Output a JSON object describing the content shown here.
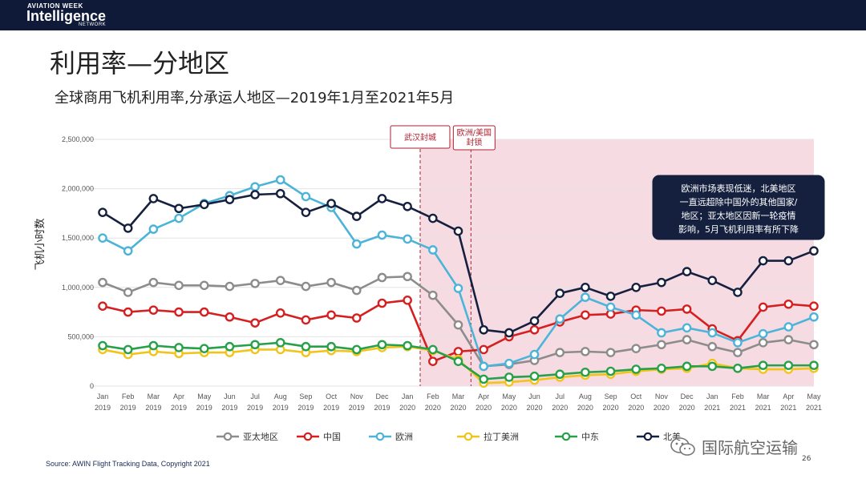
{
  "header": {
    "brand_small": "AVIATION WEEK",
    "brand_main": "Intelligence",
    "brand_network": "NETWORK",
    "accent_color": "#c8102e"
  },
  "slide": {
    "title": "利用率—分地区",
    "subtitle": "全球商用飞机利用率,分承运人地区—2019年1月至2021年5月",
    "source": "Source: AWIN Flight Tracking Data, Copyright 2021",
    "page_number": "26"
  },
  "watermark": {
    "icon": "wechat-icon",
    "text": "国际航空运输"
  },
  "chart_data": {
    "type": "line",
    "title": "",
    "xlabel": "",
    "ylabel": "飞机小时数",
    "ylim": [
      0,
      2500000
    ],
    "yticks": [
      0,
      500000,
      1000000,
      1500000,
      2000000,
      2500000
    ],
    "ytick_labels": [
      "0",
      "500,000",
      "1,000,000",
      "1,500,000",
      "2,000,000",
      "2,500,000"
    ],
    "categories": [
      [
        "Jan",
        "2019"
      ],
      [
        "Feb",
        "2019"
      ],
      [
        "Mar",
        "2019"
      ],
      [
        "Apr",
        "2019"
      ],
      [
        "May",
        "2019"
      ],
      [
        "Jun",
        "2019"
      ],
      [
        "Jul",
        "2019"
      ],
      [
        "Aug",
        "2019"
      ],
      [
        "Sep",
        "2019"
      ],
      [
        "Oct",
        "2019"
      ],
      [
        "Nov",
        "2019"
      ],
      [
        "Dec",
        "2019"
      ],
      [
        "Jan",
        "2020"
      ],
      [
        "Feb",
        "2020"
      ],
      [
        "Mar",
        "2020"
      ],
      [
        "Apr",
        "2020"
      ],
      [
        "May",
        "2020"
      ],
      [
        "Jun",
        "2020"
      ],
      [
        "Jul",
        "2020"
      ],
      [
        "Aug",
        "2020"
      ],
      [
        "Sep",
        "2020"
      ],
      [
        "Oct",
        "2020"
      ],
      [
        "Nov",
        "2020"
      ],
      [
        "Dec",
        "2020"
      ],
      [
        "Jan",
        "2021"
      ],
      [
        "Feb",
        "2021"
      ],
      [
        "Mar",
        "2021"
      ],
      [
        "Apr",
        "2021"
      ],
      [
        "May",
        "2021"
      ]
    ],
    "grid": true,
    "legend_position": "bottom",
    "shaded_region": {
      "from": "Feb 2020",
      "to": "May 2021",
      "color": "#f7dbe3"
    },
    "event_markers": [
      {
        "at": "Jan 2020",
        "label": "武汉封城"
      },
      {
        "at": "Mar 2020",
        "label_lines": [
          "欧洲/美国",
          "封锁"
        ]
      }
    ],
    "annotation": {
      "lines": [
        "欧洲市场表现低迷，北美地区",
        "一直远超除中国外的其他国家/",
        "地区；亚太地区因新一轮疫情",
        "影响，5月飞机利用率有所下降"
      ]
    },
    "series": [
      {
        "name": "亚太地区",
        "color": "#8c8c8c",
        "values": [
          1050000,
          950000,
          1050000,
          1020000,
          1020000,
          1010000,
          1040000,
          1070000,
          1010000,
          1050000,
          970000,
          1100000,
          1110000,
          920000,
          620000,
          200000,
          220000,
          260000,
          340000,
          350000,
          340000,
          380000,
          420000,
          470000,
          400000,
          340000,
          440000,
          470000,
          420000
        ]
      },
      {
        "name": "中国",
        "color": "#d42020",
        "values": [
          810000,
          750000,
          770000,
          750000,
          750000,
          700000,
          640000,
          740000,
          670000,
          720000,
          690000,
          840000,
          870000,
          250000,
          350000,
          370000,
          500000,
          570000,
          650000,
          720000,
          730000,
          770000,
          760000,
          780000,
          580000,
          460000,
          800000,
          830000,
          810000
        ]
      },
      {
        "name": "欧洲",
        "color": "#4cb4d8",
        "values": [
          1500000,
          1370000,
          1590000,
          1700000,
          1850000,
          1930000,
          2020000,
          2090000,
          1920000,
          1810000,
          1440000,
          1530000,
          1490000,
          1380000,
          990000,
          200000,
          230000,
          320000,
          680000,
          900000,
          800000,
          720000,
          540000,
          590000,
          540000,
          440000,
          530000,
          600000,
          700000
        ]
      },
      {
        "name": "拉丁美洲",
        "color": "#f0c419",
        "values": [
          370000,
          320000,
          350000,
          330000,
          340000,
          340000,
          370000,
          370000,
          340000,
          360000,
          350000,
          390000,
          400000,
          360000,
          270000,
          30000,
          40000,
          60000,
          90000,
          110000,
          120000,
          150000,
          170000,
          180000,
          230000,
          180000,
          170000,
          170000,
          180000
        ]
      },
      {
        "name": "中东",
        "color": "#27a049",
        "values": [
          410000,
          370000,
          410000,
          390000,
          380000,
          400000,
          420000,
          440000,
          400000,
          400000,
          370000,
          420000,
          410000,
          370000,
          250000,
          70000,
          90000,
          100000,
          120000,
          140000,
          150000,
          170000,
          180000,
          200000,
          200000,
          180000,
          210000,
          210000,
          210000
        ]
      },
      {
        "name": "北美",
        "color": "#15203f",
        "values": [
          1760000,
          1600000,
          1900000,
          1800000,
          1840000,
          1890000,
          1940000,
          1950000,
          1760000,
          1850000,
          1720000,
          1900000,
          1820000,
          1700000,
          1570000,
          570000,
          540000,
          660000,
          940000,
          1000000,
          910000,
          1000000,
          1050000,
          1160000,
          1070000,
          950000,
          1270000,
          1270000,
          1370000
        ]
      }
    ]
  }
}
